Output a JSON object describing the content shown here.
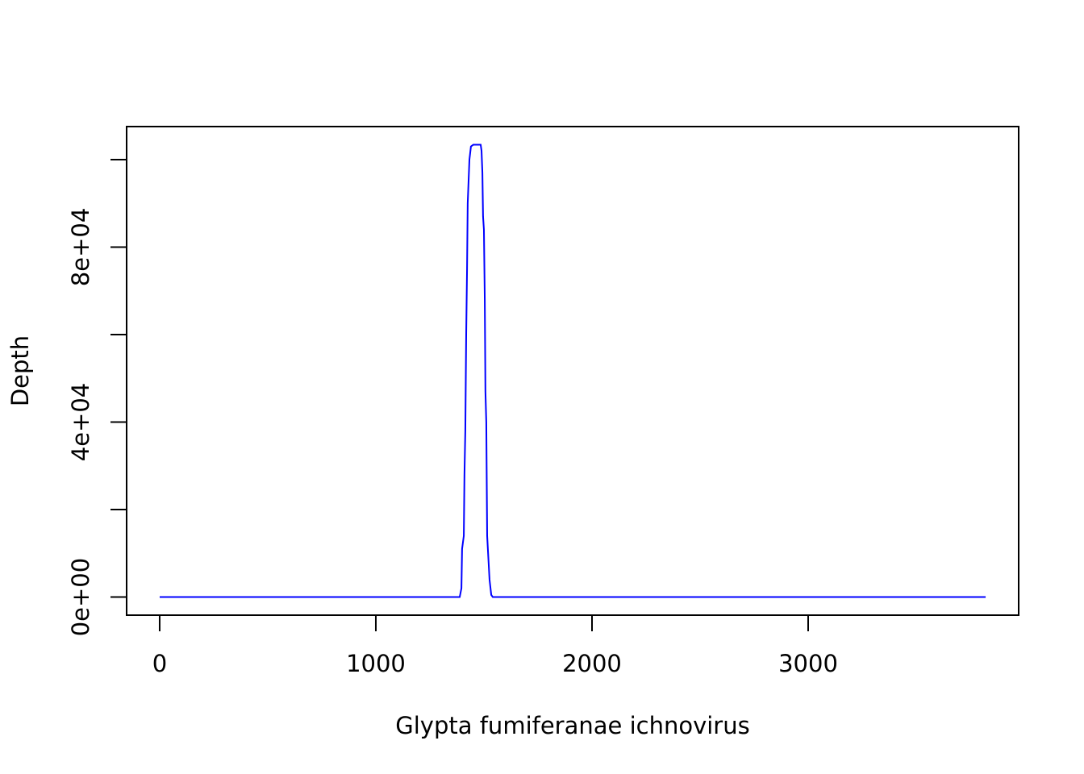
{
  "chart_data": {
    "type": "line",
    "xlabel": "Glypta fumiferanae ichnovirus",
    "ylabel": "Depth",
    "x": [
      0,
      1388,
      1396,
      1399,
      1407,
      1410,
      1414,
      1418,
      1422,
      1425,
      1433,
      1440,
      1451,
      1485,
      1489,
      1493,
      1496,
      1500,
      1504,
      1507,
      1511,
      1515,
      1526,
      1534,
      1541,
      3821
    ],
    "values": [
      0,
      0,
      2000,
      11000,
      14000,
      28000,
      38000,
      60000,
      75000,
      90000,
      100000,
      103000,
      103400,
      103400,
      102000,
      97000,
      87000,
      84000,
      68000,
      47000,
      40000,
      14000,
      4000,
      500,
      0,
      0
    ],
    "color": "#0000ff",
    "xlim": [
      -152.8,
      3973.8
    ],
    "ylim": [
      -4136,
      107546
    ],
    "xticks": [
      0,
      1000,
      2000,
      3000
    ],
    "yticks": [
      {
        "value": 0,
        "label": "0e+00"
      },
      {
        "value": 40000,
        "label": "4e+04"
      },
      {
        "value": 80000,
        "label": "8e+04"
      }
    ],
    "yticks_unlabeled": [
      20000,
      60000,
      100000
    ]
  }
}
